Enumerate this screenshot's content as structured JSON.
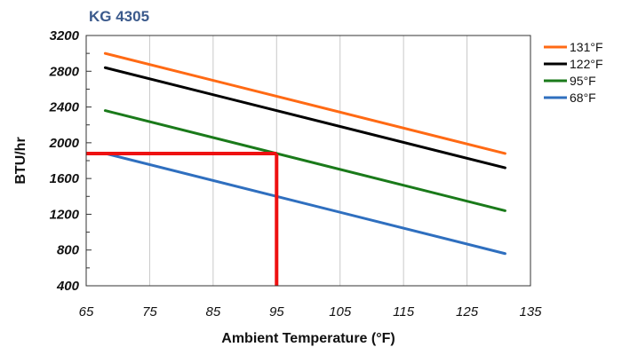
{
  "chart_data": {
    "type": "line",
    "title": "KG 4305",
    "xlabel": "Ambient Temperature (°F)",
    "ylabel": "BTU/hr",
    "xlim": [
      65,
      135
    ],
    "ylim": [
      400,
      3200
    ],
    "xticks": [
      65,
      75,
      85,
      95,
      105,
      115,
      125,
      135
    ],
    "yticks": [
      400,
      800,
      1200,
      1600,
      2000,
      2400,
      2800,
      3200
    ],
    "grid": "vertical",
    "legend_position": "right",
    "series": [
      {
        "name": "131°F",
        "color": "#ff6a14",
        "x": [
          68,
          131
        ],
        "y": [
          3000,
          1880
        ]
      },
      {
        "name": "122°F",
        "color": "#000000",
        "x": [
          68,
          131
        ],
        "y": [
          2840,
          1720
        ]
      },
      {
        "name": "95°F",
        "color": "#1a7a1a",
        "x": [
          68,
          131
        ],
        "y": [
          2360,
          1240
        ]
      },
      {
        "name": "68°F",
        "color": "#2f6fbf",
        "x": [
          68,
          131
        ],
        "y": [
          1880,
          760
        ]
      }
    ],
    "reference_lines": {
      "color": "#ee1111",
      "horizontal": {
        "y": 1880,
        "x_from": 65,
        "x_to": 95
      },
      "vertical": {
        "x": 95,
        "y_from": 400,
        "y_to": 1880
      }
    },
    "title_color": "#3b5a8c"
  }
}
